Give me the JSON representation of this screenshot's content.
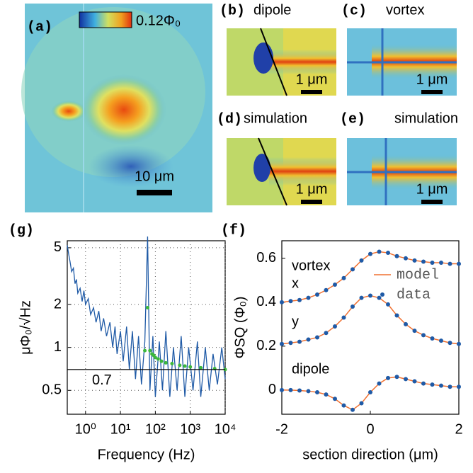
{
  "panels": {
    "a": {
      "label": "(a)",
      "colorbar_label": "0.12Φ₀",
      "scale_bar": "10 μm"
    },
    "b": {
      "label": "(b)",
      "title": "dipole",
      "scale_bar": "1 μm"
    },
    "c": {
      "label": "(c)",
      "title": "vortex",
      "scale_bar": "1 μm"
    },
    "d": {
      "label": "(d)",
      "title": "simulation",
      "scale_bar": "1 μm"
    },
    "e": {
      "label": "(e)",
      "title": "simulation",
      "scale_bar": "1 μm"
    }
  },
  "chart_data": [
    {
      "type": "line",
      "title": "(g)",
      "x_label": "Frequency (Hz)",
      "y_label": "μΦ₀/√Hz",
      "xlog": true,
      "ylog": true,
      "grid": true,
      "xlim": [
        0.3,
        10000
      ],
      "ylim": [
        0.34,
        5.6
      ],
      "xticks": [
        {
          "value": 1,
          "label": "10⁰"
        },
        {
          "value": 10,
          "label": "10¹"
        },
        {
          "value": 100,
          "label": "10²"
        },
        {
          "value": 1000,
          "label": "10³"
        },
        {
          "value": 10000,
          "label": "10⁴"
        }
      ],
      "yticks": [
        0.5,
        1,
        2,
        5
      ],
      "hline": 0.7,
      "series": [
        {
          "type": "line",
          "color": "#1f5aa6",
          "x": [
            0.3,
            0.33,
            0.36,
            0.4,
            0.45,
            0.5,
            0.55,
            0.6,
            0.7,
            0.8,
            0.9,
            1,
            1.2,
            1.4,
            1.7,
            2,
            2.4,
            2.8,
            3.3,
            4,
            5,
            6,
            7,
            8,
            10,
            12,
            15,
            18,
            22,
            27,
            33,
            40,
            50,
            60,
            70,
            85,
            100,
            130,
            160,
            200,
            260,
            330,
            420,
            550,
            700,
            900,
            1200,
            1600,
            2000,
            2700,
            3500,
            4500,
            6000,
            8000,
            10000
          ],
          "values": [
            5.2,
            4.5,
            4.0,
            3.4,
            3.6,
            2.8,
            3.0,
            2.4,
            2.6,
            2.1,
            2.5,
            2.0,
            2.2,
            1.7,
            1.9,
            1.5,
            1.8,
            1.3,
            1.6,
            1.2,
            1.5,
            1.0,
            1.4,
            0.9,
            1.3,
            0.8,
            1.4,
            0.7,
            1.3,
            0.6,
            1.2,
            0.55,
            1.1,
            6.0,
            0.5,
            1.2,
            0.45,
            1.1,
            0.5,
            1.3,
            0.45,
            1.0,
            0.5,
            1.2,
            0.45,
            1.0,
            0.5,
            1.1,
            0.45,
            1.0,
            0.5,
            0.9,
            0.55,
            1.0,
            0.6
          ]
        },
        {
          "type": "scatter",
          "color": "#3cb83c",
          "x": [
            50,
            60,
            70,
            80,
            90,
            100,
            120,
            150,
            200,
            300,
            500,
            700,
            1000,
            2000,
            5000,
            10000
          ],
          "values": [
            0.95,
            1.9,
            0.95,
            0.9,
            0.88,
            0.85,
            0.83,
            0.8,
            0.78,
            0.77,
            0.75,
            0.74,
            0.73,
            0.72,
            0.71,
            0.7
          ]
        }
      ]
    },
    {
      "type": "line",
      "title": "(f)",
      "x_label": "section direction (μm)",
      "y_label": "ΦSQ (Φ₀)",
      "xlim": [
        -2,
        2
      ],
      "ylim": [
        -0.11,
        0.68
      ],
      "xticks": [
        -2,
        0,
        2
      ],
      "yticks": [
        0,
        0.2,
        0.4,
        0.6
      ],
      "legend": "upper right",
      "annotations": [
        "vortex",
        "x",
        "y",
        "dipole"
      ],
      "x": [
        -2,
        -1.8,
        -1.6,
        -1.4,
        -1.2,
        -1,
        -0.8,
        -0.6,
        -0.4,
        -0.2,
        0,
        0.2,
        0.4,
        0.6,
        0.8,
        1,
        1.2,
        1.4,
        1.6,
        1.8,
        2
      ],
      "series": [
        {
          "name": "model",
          "type": "line",
          "color": "#f07030",
          "values": [
            0.4,
            0.405,
            0.41,
            0.42,
            0.435,
            0.455,
            0.48,
            0.51,
            0.55,
            0.59,
            0.62,
            0.63,
            0.625,
            0.61,
            0.6,
            0.59,
            0.585,
            0.58,
            0.58,
            0.575,
            0.575
          ]
        },
        {
          "type": "line",
          "color": "#f07030",
          "values": [
            0.21,
            0.215,
            0.22,
            0.23,
            0.24,
            0.26,
            0.29,
            0.33,
            0.38,
            0.42,
            0.43,
            0.42,
            0.39,
            0.34,
            0.3,
            0.27,
            0.25,
            0.235,
            0.225,
            0.215,
            0.21
          ]
        },
        {
          "type": "line",
          "color": "#f07030",
          "values": [
            0,
            0,
            -0.002,
            -0.005,
            -0.01,
            -0.02,
            -0.04,
            -0.07,
            -0.09,
            -0.06,
            -0.01,
            0.03,
            0.055,
            0.06,
            0.05,
            0.04,
            0.03,
            0.025,
            0.02,
            0.015,
            0.015
          ]
        },
        {
          "name": "data",
          "type": "scatter",
          "color": "#1f5aa6",
          "values": [
            0.4,
            0.405,
            0.41,
            0.42,
            0.435,
            0.455,
            0.48,
            0.51,
            0.55,
            0.59,
            0.62,
            0.63,
            0.625,
            0.61,
            0.6,
            0.59,
            0.585,
            0.58,
            0.58,
            0.575,
            0.575
          ]
        },
        {
          "type": "scatter",
          "color": "#1f5aa6",
          "values": [
            0.21,
            0.215,
            0.22,
            0.23,
            0.24,
            0.26,
            0.29,
            0.33,
            0.38,
            0.42,
            0.43,
            0.42,
            0.39,
            0.34,
            0.3,
            0.27,
            0.25,
            0.235,
            0.225,
            0.215,
            0.21
          ]
        },
        {
          "type": "scatter",
          "color": "#1f5aa6",
          "values": [
            0,
            0,
            -0.002,
            -0.005,
            -0.01,
            -0.02,
            -0.04,
            -0.07,
            -0.09,
            -0.06,
            -0.01,
            0.03,
            0.055,
            0.06,
            0.05,
            0.04,
            0.03,
            0.025,
            0.02,
            0.015,
            0.015
          ]
        }
      ]
    }
  ]
}
